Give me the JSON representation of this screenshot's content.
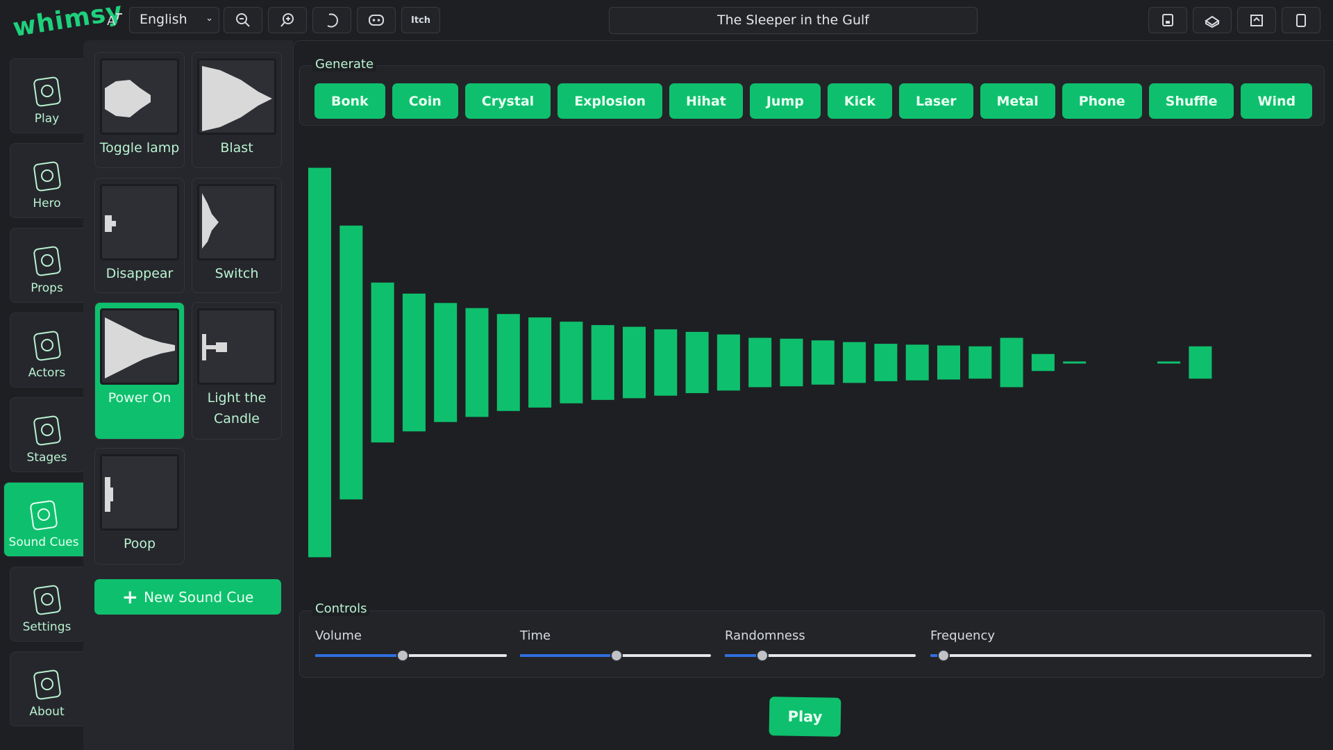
{
  "header": {
    "logo": "whimsy",
    "language": "English",
    "itch": "Itch",
    "project_title": "The Sleeper in the Gulf"
  },
  "nav": [
    "Play",
    "Hero",
    "Props",
    "Actors",
    "Stages",
    "Sound Cues",
    "Settings",
    "About"
  ],
  "sound_cues": {
    "items": [
      "Toggle lamp",
      "Blast",
      "Disappear",
      "Switch",
      "Power On",
      "Light the Candle",
      "Poop"
    ],
    "new_button": "New Sound Cue"
  },
  "generate": {
    "label": "Generate",
    "buttons": [
      "Bonk",
      "Coin",
      "Crystal",
      "Explosion",
      "Hihat",
      "Jump",
      "Kick",
      "Laser",
      "Metal",
      "Phone",
      "Shuffle",
      "Wind"
    ]
  },
  "controls": {
    "label": "Controls",
    "sliders": [
      "Volume",
      "Time",
      "Randomness",
      "Frequency"
    ]
  },
  "play_button": "Play"
}
